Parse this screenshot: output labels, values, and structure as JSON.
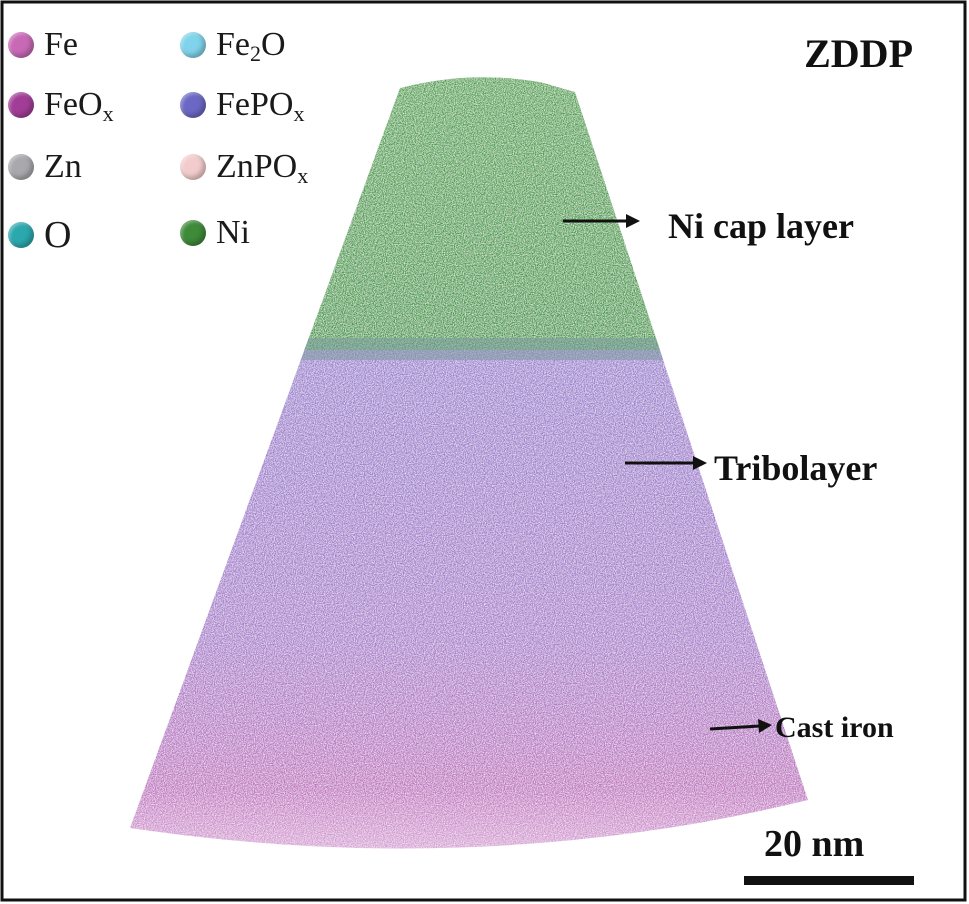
{
  "title": "ZDDP",
  "legend": [
    {
      "base": "Fe",
      "sub": "",
      "rest": "",
      "color": "#c869b6"
    },
    {
      "base": "FeO",
      "sub": "x",
      "rest": "",
      "color": "#a23d97"
    },
    {
      "base": "Zn",
      "sub": "",
      "rest": "",
      "color": "#a9a9ad"
    },
    {
      "base": "O",
      "sub": "",
      "rest": "",
      "color": "#2ba8ad"
    },
    {
      "base": "Fe",
      "sub": "2",
      "rest": "O",
      "color": "#7fd3ea"
    },
    {
      "base": "FePO",
      "sub": "x",
      "rest": "",
      "color": "#6b67c4"
    },
    {
      "base": "ZnPO",
      "sub": "x",
      "rest": "",
      "color": "#f2cccc"
    },
    {
      "base": "Ni",
      "sub": "",
      "rest": "",
      "color": "#3e8a39"
    }
  ],
  "annotations": {
    "ni_cap": "Ni cap layer",
    "tribolayer": "Tribolayer",
    "cast_iron": "Cast iron"
  },
  "scale_bar": "20 nm"
}
